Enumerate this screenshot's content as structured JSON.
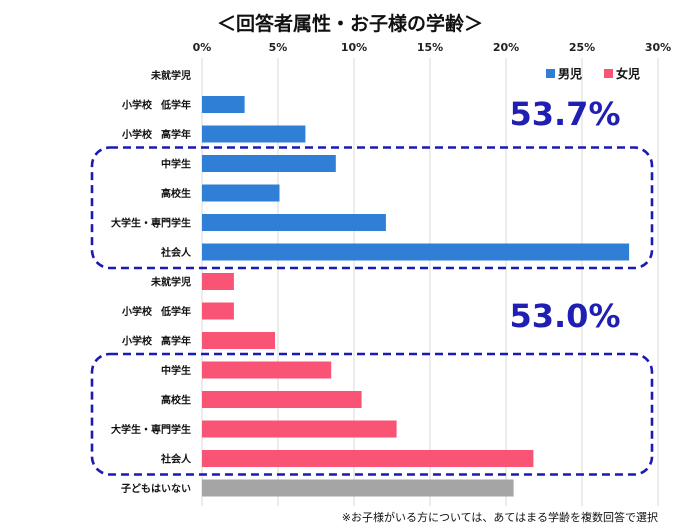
{
  "chart_data": {
    "type": "bar",
    "orientation": "horizontal",
    "title": "＜回答者属性・お子様の学齢＞",
    "xlim": [
      0,
      30
    ],
    "xticks": [
      "0%",
      "5%",
      "10%",
      "15%",
      "20%",
      "25%",
      "30%"
    ],
    "grid": true,
    "legend": {
      "placement": "top-right",
      "entries": [
        {
          "label": "男児",
          "color": "#2f7fd6"
        },
        {
          "label": "女児",
          "color": "#f95476"
        }
      ]
    },
    "series": [
      {
        "name": "男児",
        "color": "#2f7fd6",
        "categories": [
          "未就学児",
          "小学校 低学年",
          "小学校 高学年",
          "中学生",
          "高校生",
          "大学生・専門学生",
          "社会人"
        ],
        "values": [
          0,
          2.8,
          6.8,
          8.8,
          5.1,
          12.1,
          28.1
        ]
      },
      {
        "name": "女児",
        "color": "#f95476",
        "categories": [
          "未就学児",
          "小学校 低学年",
          "小学校 高学年",
          "中学生",
          "高校生",
          "大学生・専門学生",
          "社会人"
        ],
        "values": [
          2.1,
          2.1,
          4.8,
          8.5,
          10.5,
          12.8,
          21.8
        ]
      },
      {
        "name": "",
        "color": "#a5a5a5",
        "categories": [
          "子どもはいない"
        ],
        "values": [
          20.5
        ]
      }
    ],
    "annotations": [
      {
        "text": "53.7%",
        "group": "男児",
        "bracket_categories": [
          "中学生",
          "高校生",
          "大学生・専門学生",
          "社会人"
        ]
      },
      {
        "text": "53.0%",
        "group": "女児",
        "bracket_categories": [
          "中学生",
          "高校生",
          "大学生・専門学生",
          "社会人"
        ]
      }
    ],
    "bracket_color": "#1a1ab4",
    "footnote": "※お子様がいる方については、あてはまる学齢を複数回答で選択"
  }
}
